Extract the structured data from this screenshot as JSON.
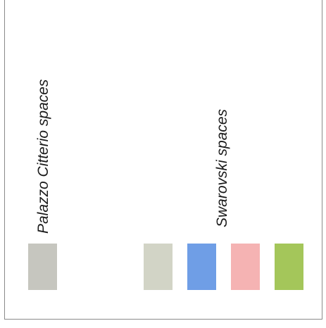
{
  "labels": {
    "palazzo": "Palazzo Citterio spaces",
    "swarovski": "Swarovski spaces"
  },
  "swatches": [
    {
      "group": "palazzo",
      "color": "#c6c6bf"
    },
    {
      "group": "swarovski",
      "color": "#d2d4c6"
    },
    {
      "group": "swarovski",
      "color": "#6f9ee6"
    },
    {
      "group": "swarovski",
      "color": "#f5b3b3"
    },
    {
      "group": "swarovski",
      "color": "#a4c65a"
    }
  ]
}
